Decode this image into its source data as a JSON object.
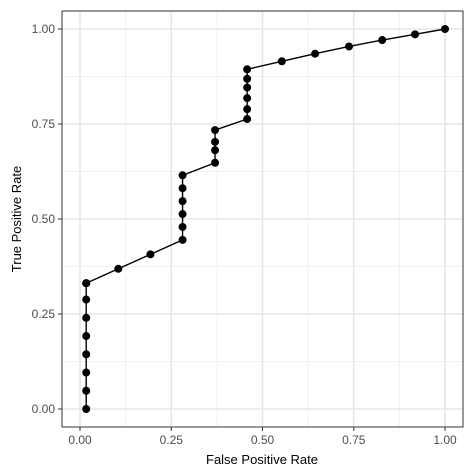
{
  "chart_data": {
    "type": "line",
    "xlabel": "False Positive Rate",
    "ylabel": "True Positive Rate",
    "xlim": [
      0,
      1
    ],
    "ylim": [
      0,
      1
    ],
    "x_ticks": [
      "0.00",
      "0.25",
      "0.50",
      "0.75",
      "1.00"
    ],
    "y_ticks": [
      "0.00",
      "0.25",
      "0.50",
      "0.75",
      "1.00"
    ],
    "grid": true,
    "series": [
      {
        "x": [
          0.017,
          0.017,
          0.017,
          0.017,
          0.017,
          0.017,
          0.017,
          0.017,
          0.017,
          0.017,
          0.105,
          0.193,
          0.281,
          0.281,
          0.281,
          0.281,
          0.281,
          0.281,
          0.37,
          0.37,
          0.37,
          0.37,
          0.458,
          0.458,
          0.458,
          0.458,
          0.458,
          0.458,
          0.553,
          0.644,
          0.737,
          0.828,
          0.918,
          1.0
        ],
        "y": [
          0.0,
          0.048,
          0.096,
          0.144,
          0.192,
          0.24,
          0.288,
          0.331,
          0.331,
          0.331,
          0.369,
          0.407,
          0.445,
          0.479,
          0.513,
          0.547,
          0.581,
          0.615,
          0.648,
          0.681,
          0.703,
          0.734,
          0.763,
          0.789,
          0.818,
          0.846,
          0.869,
          0.894,
          0.915,
          0.935,
          0.954,
          0.971,
          0.986,
          1.0
        ]
      }
    ]
  }
}
